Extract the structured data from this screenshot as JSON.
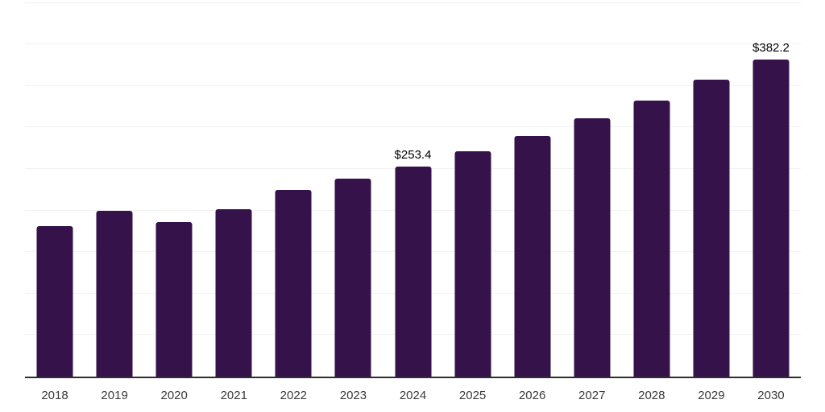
{
  "chart_data": {
    "type": "bar",
    "categories": [
      "2018",
      "2019",
      "2020",
      "2021",
      "2022",
      "2023",
      "2024",
      "2025",
      "2026",
      "2027",
      "2028",
      "2029",
      "2030"
    ],
    "values": [
      181,
      199.5,
      186,
      201.5,
      224.5,
      238,
      253.4,
      271.5,
      290,
      311,
      332.5,
      358,
      382.2
    ],
    "data_labels": {
      "2024": "$253.4",
      "2030": "$382.2"
    },
    "title": "",
    "xlabel": "",
    "ylabel": "",
    "ylim": [
      0,
      453.5
    ],
    "gridline_step": 50,
    "grid": true,
    "legend": false
  },
  "style": {
    "bar_color": "#36124b",
    "grid_color": "#f2f2f2",
    "axis_color": "#2e2e2e",
    "tick_label_color": "#3a3a3a",
    "value_label_color": "#000000",
    "background": "#ffffff"
  }
}
